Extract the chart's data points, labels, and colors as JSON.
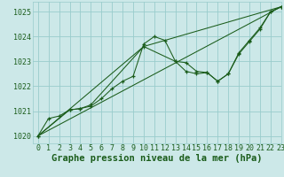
{
  "title": "Graphe pression niveau de la mer (hPa)",
  "xlim": [
    -0.5,
    23
  ],
  "ylim": [
    1019.7,
    1025.4
  ],
  "xticks": [
    0,
    1,
    2,
    3,
    4,
    5,
    6,
    7,
    8,
    9,
    10,
    11,
    12,
    13,
    14,
    15,
    16,
    17,
    18,
    19,
    20,
    21,
    22,
    23
  ],
  "yticks": [
    1020,
    1021,
    1022,
    1023,
    1024,
    1025
  ],
  "background_color": "#cce8e8",
  "grid_color": "#99cccc",
  "line_color": "#1a5c1a",
  "series": [
    {
      "x": [
        0,
        1,
        2,
        3,
        4,
        5,
        6,
        7,
        8,
        9,
        10,
        11,
        12,
        13,
        14,
        15,
        16,
        17,
        18,
        19,
        20,
        21,
        22,
        23
      ],
      "y": [
        1020.0,
        1020.7,
        1020.8,
        1021.05,
        1021.1,
        1021.2,
        1021.5,
        1021.9,
        1022.2,
        1022.4,
        1023.7,
        1024.0,
        1023.85,
        1023.0,
        1022.95,
        1022.6,
        1022.55,
        1022.2,
        1022.5,
        1023.35,
        1023.85,
        1024.35,
        1025.0,
        1025.2
      ],
      "marker": true
    },
    {
      "x": [
        0,
        3,
        4,
        5,
        10,
        13,
        14,
        15,
        16,
        17,
        18,
        19,
        20,
        21,
        22,
        23
      ],
      "y": [
        1020.0,
        1021.05,
        1021.1,
        1021.25,
        1023.6,
        1023.0,
        1022.6,
        1022.5,
        1022.55,
        1022.2,
        1022.5,
        1023.3,
        1023.8,
        1024.3,
        1025.0,
        1025.2
      ],
      "marker": true
    },
    {
      "x": [
        0,
        23
      ],
      "y": [
        1020.0,
        1025.2
      ],
      "marker": false
    },
    {
      "comment": "line through 0, 10, 23",
      "x": [
        0,
        10,
        23
      ],
      "y": [
        1020.0,
        1023.6,
        1025.2
      ],
      "marker": false
    }
  ],
  "title_fontsize": 7.5,
  "tick_fontsize": 6
}
